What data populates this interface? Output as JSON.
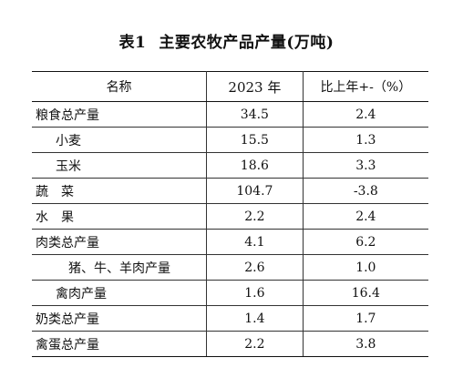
{
  "title": {
    "number": "表1",
    "text": "主要农牧产品产量(万吨)"
  },
  "table": {
    "headers": [
      "名称",
      "2023 年",
      "比上年+-（%）"
    ],
    "rows": [
      {
        "name": "粮食总产量",
        "indent": 0,
        "value": "34.5",
        "change": "2.4"
      },
      {
        "name": "小麦",
        "indent": 1,
        "value": "15.5",
        "change": "1.3"
      },
      {
        "name": "玉米",
        "indent": 1,
        "value": "18.6",
        "change": "3.3"
      },
      {
        "name": "蔬　菜",
        "indent": 0,
        "value": "104.7",
        "change": "-3.8"
      },
      {
        "name": "水　果",
        "indent": 0,
        "value": "2.2",
        "change": "2.4"
      },
      {
        "name": "肉类总产量",
        "indent": 0,
        "value": "4.1",
        "change": "6.2"
      },
      {
        "name": "猪、牛、羊肉产量",
        "indent": 2,
        "value": "2.6",
        "change": "1.0"
      },
      {
        "name": "禽肉产量",
        "indent": 1,
        "value": "1.6",
        "change": "16.4"
      },
      {
        "name": "奶类总产量",
        "indent": 0,
        "value": "1.4",
        "change": "1.7"
      },
      {
        "name": "禽蛋总产量",
        "indent": 0,
        "value": "2.2",
        "change": "3.8"
      }
    ]
  }
}
